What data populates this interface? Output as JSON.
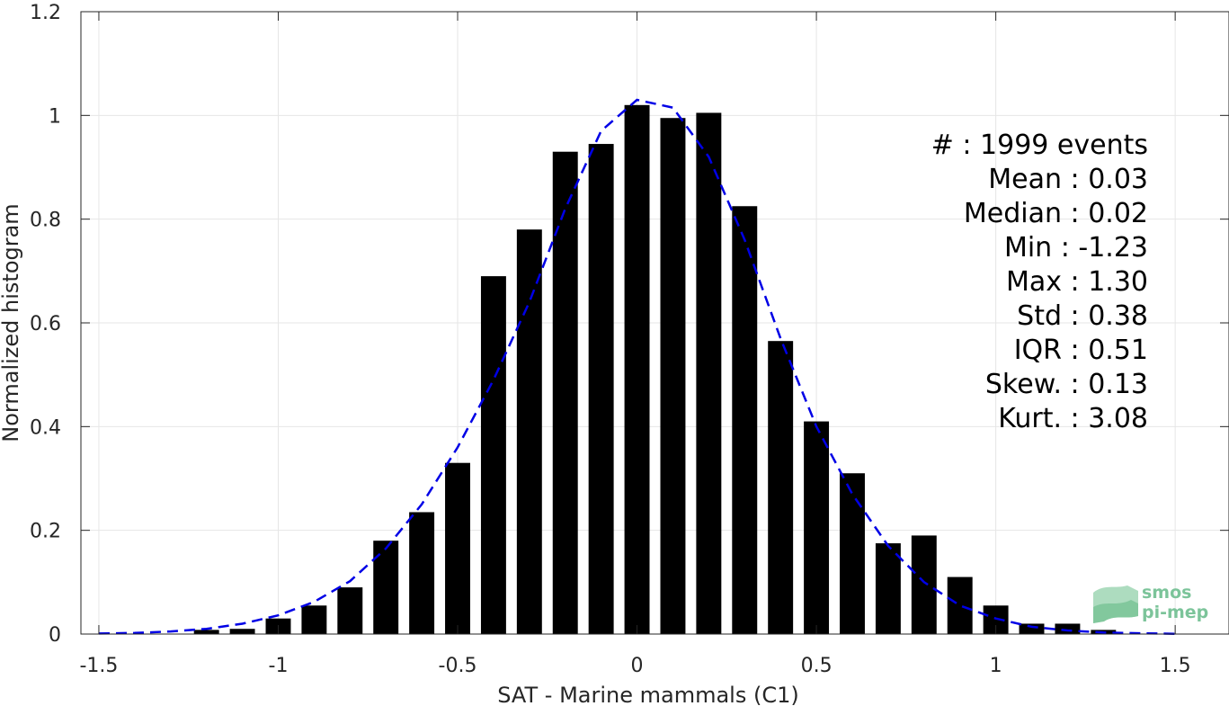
{
  "chart_data": {
    "type": "bar",
    "xlabel": "SAT - Marine mammals (C1)",
    "ylabel": "Normalized histogram",
    "xlim": [
      -1.55,
      1.65
    ],
    "ylim": [
      0,
      1.2
    ],
    "grid": true,
    "x_ticks": [
      -1.5,
      -1,
      -0.5,
      0,
      0.5,
      1,
      1.5
    ],
    "x_tick_labels": [
      "-1.5",
      "-1",
      "-0.5",
      "0",
      "0.5",
      "1",
      "1.5"
    ],
    "y_ticks": [
      0,
      0.2,
      0.4,
      0.6,
      0.8,
      1,
      1.2
    ],
    "y_tick_labels": [
      "0",
      "0.2",
      "0.4",
      "0.6",
      "0.8",
      "1",
      "1.2"
    ],
    "bar_width": 0.07,
    "bars": {
      "x": [
        -1.2,
        -1.1,
        -1.0,
        -0.9,
        -0.8,
        -0.7,
        -0.6,
        -0.5,
        -0.4,
        -0.3,
        -0.2,
        -0.1,
        0.0,
        0.1,
        0.2,
        0.3,
        0.4,
        0.5,
        0.6,
        0.7,
        0.8,
        0.9,
        1.0,
        1.1,
        1.2,
        1.3
      ],
      "values": [
        0.008,
        0.01,
        0.03,
        0.055,
        0.09,
        0.18,
        0.235,
        0.33,
        0.69,
        0.78,
        0.93,
        0.945,
        1.02,
        0.995,
        1.005,
        0.825,
        0.565,
        0.41,
        0.31,
        0.175,
        0.19,
        0.11,
        0.055,
        0.02,
        0.02,
        0.008
      ],
      "color": "#000000"
    },
    "fit_line": {
      "style": "dashed",
      "color": "#0000e6",
      "x": [
        -1.5,
        -1.4,
        -1.3,
        -1.2,
        -1.1,
        -1.0,
        -0.9,
        -0.8,
        -0.7,
        -0.6,
        -0.5,
        -0.4,
        -0.3,
        -0.2,
        -0.1,
        0.0,
        0.1,
        0.2,
        0.3,
        0.4,
        0.5,
        0.6,
        0.7,
        0.8,
        0.9,
        1.0,
        1.1,
        1.2,
        1.3,
        1.4,
        1.5
      ],
      "y": [
        0.001,
        0.002,
        0.005,
        0.01,
        0.02,
        0.036,
        0.062,
        0.102,
        0.165,
        0.25,
        0.36,
        0.49,
        0.64,
        0.82,
        0.97,
        1.03,
        1.015,
        0.92,
        0.76,
        0.57,
        0.4,
        0.27,
        0.17,
        0.1,
        0.055,
        0.03,
        0.014,
        0.007,
        0.003,
        0.0015,
        0.0005
      ]
    },
    "stats": [
      "#  : 1999 events",
      "Mean : 0.03",
      "Median : 0.02",
      "Min : -1.23",
      "Max : 1.30",
      "Std : 0.38",
      "IQR : 0.51",
      "Skew. : 0.13",
      "Kurt. : 3.08"
    ]
  },
  "logo": {
    "line1": "smos",
    "line2": "pi-mep"
  }
}
